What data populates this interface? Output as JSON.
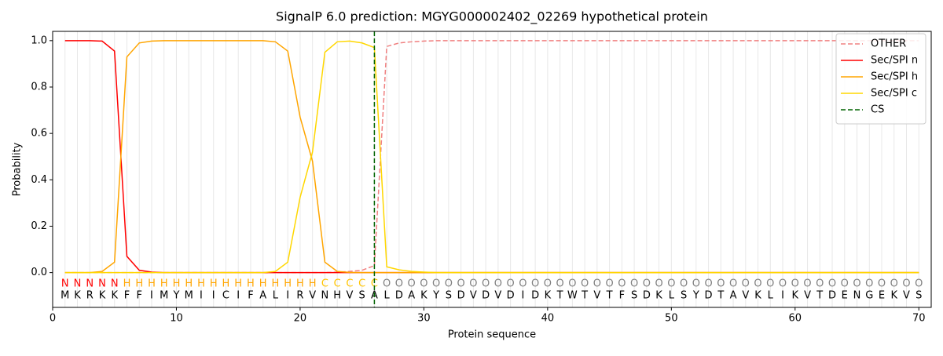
{
  "chart_data": {
    "type": "line",
    "title": "SignalP 6.0 prediction: MGYG000002402_02269 hypothetical protein",
    "x_label": "Protein sequence",
    "y_label": "Probability",
    "x": [
      1,
      2,
      3,
      4,
      5,
      6,
      7,
      8,
      9,
      10,
      11,
      12,
      13,
      14,
      15,
      16,
      17,
      18,
      19,
      20,
      21,
      22,
      23,
      24,
      25,
      26,
      27,
      28,
      29,
      30,
      31,
      32,
      33,
      34,
      35,
      36,
      37,
      38,
      39,
      40,
      41,
      42,
      43,
      44,
      45,
      46,
      47,
      48,
      49,
      50,
      51,
      52,
      53,
      54,
      55,
      56,
      57,
      58,
      59,
      60,
      61,
      62,
      63,
      64,
      65,
      66,
      67,
      68,
      69,
      70
    ],
    "series": [
      {
        "name": "OTHER",
        "color": "#f08080",
        "dash": true,
        "values": [
          0,
          0,
          0,
          0,
          0,
          0,
          0,
          0,
          0,
          0,
          0,
          0,
          0,
          0,
          0,
          0,
          0,
          0,
          0,
          0,
          0,
          0,
          0.002,
          0.005,
          0.01,
          0.03,
          0.975,
          0.99,
          0.995,
          0.998,
          1,
          1,
          1,
          1,
          1,
          1,
          1,
          1,
          1,
          1,
          1,
          1,
          1,
          1,
          1,
          1,
          1,
          1,
          1,
          1,
          1,
          1,
          1,
          1,
          1,
          1,
          1,
          1,
          1,
          1,
          1,
          1,
          1,
          1,
          1,
          1,
          1,
          1,
          1,
          1
        ]
      },
      {
        "name": "Sec/SPI n",
        "color": "#ff0000",
        "dash": false,
        "values": [
          1,
          1,
          1,
          0.998,
          0.955,
          0.07,
          0.01,
          0.002,
          0,
          0,
          0,
          0,
          0,
          0,
          0,
          0,
          0,
          0,
          0,
          0,
          0,
          0,
          0,
          0,
          0,
          0,
          0,
          0,
          0,
          0,
          0,
          0,
          0,
          0,
          0,
          0,
          0,
          0,
          0,
          0,
          0,
          0,
          0,
          0,
          0,
          0,
          0,
          0,
          0,
          0,
          0,
          0,
          0,
          0,
          0,
          0,
          0,
          0,
          0,
          0,
          0,
          0,
          0,
          0,
          0,
          0,
          0,
          0,
          0,
          0
        ]
      },
      {
        "name": "Sec/SPI h",
        "color": "#ffa500",
        "dash": false,
        "values": [
          0,
          0,
          0,
          0.005,
          0.045,
          0.93,
          0.99,
          0.998,
          1,
          1,
          1,
          1,
          1,
          1,
          1,
          1,
          1,
          0.995,
          0.955,
          0.67,
          0.48,
          0.045,
          0.005,
          0.001,
          0,
          0,
          0,
          0,
          0,
          0,
          0,
          0,
          0,
          0,
          0,
          0,
          0,
          0,
          0,
          0,
          0,
          0,
          0,
          0,
          0,
          0,
          0,
          0,
          0,
          0,
          0,
          0,
          0,
          0,
          0,
          0,
          0,
          0,
          0,
          0,
          0,
          0,
          0,
          0,
          0,
          0,
          0,
          0,
          0,
          0
        ]
      },
      {
        "name": "Sec/SPI c",
        "color": "#ffd700",
        "dash": false,
        "values": [
          0,
          0,
          0,
          0,
          0,
          0,
          0,
          0,
          0,
          0,
          0,
          0,
          0,
          0,
          0,
          0,
          0,
          0.005,
          0.045,
          0.325,
          0.52,
          0.95,
          0.995,
          0.998,
          0.99,
          0.97,
          0.025,
          0.012,
          0.005,
          0.002,
          0,
          0,
          0,
          0,
          0,
          0,
          0,
          0,
          0,
          0,
          0,
          0,
          0,
          0,
          0,
          0,
          0,
          0,
          0,
          0,
          0,
          0,
          0,
          0,
          0,
          0,
          0,
          0,
          0,
          0,
          0,
          0,
          0,
          0,
          0,
          0,
          0,
          0,
          0,
          0
        ]
      }
    ],
    "vlines": [
      {
        "name": "CS",
        "x": 26,
        "color": "#006400"
      }
    ],
    "regions": [
      "N",
      "N",
      "N",
      "N",
      "N",
      "H",
      "H",
      "H",
      "H",
      "H",
      "H",
      "H",
      "H",
      "H",
      "H",
      "H",
      "H",
      "H",
      "H",
      "H",
      "H",
      "C",
      "C",
      "C",
      "C",
      "C",
      "O",
      "O",
      "O",
      "O",
      "O",
      "O",
      "O",
      "O",
      "O",
      "O",
      "O",
      "O",
      "O",
      "O",
      "O",
      "O",
      "O",
      "O",
      "O",
      "O",
      "O",
      "O",
      "O",
      "O",
      "O",
      "O",
      "O",
      "O",
      "O",
      "O",
      "O",
      "O",
      "O",
      "O",
      "O",
      "O",
      "O",
      "O",
      "O",
      "O",
      "O",
      "O",
      "O",
      "O"
    ],
    "region_colors": {
      "N": "#ff0000",
      "H": "#ffa500",
      "C": "#ffc400",
      "O": "#808080"
    },
    "residues": [
      "M",
      "K",
      "R",
      "K",
      "K",
      "F",
      "F",
      "I",
      "M",
      "Y",
      "M",
      "I",
      "I",
      "C",
      "I",
      "F",
      "A",
      "L",
      "I",
      "R",
      "V",
      "N",
      "H",
      "V",
      "S",
      "A",
      "L",
      "D",
      "A",
      "K",
      "Y",
      "S",
      "D",
      "V",
      "D",
      "V",
      "D",
      "I",
      "D",
      "K",
      "T",
      "W",
      "T",
      "V",
      "T",
      "F",
      "S",
      "D",
      "K",
      "L",
      "S",
      "Y",
      "D",
      "T",
      "A",
      "V",
      "K",
      "L",
      "I",
      "K",
      "V",
      "T",
      "D",
      "E",
      "N",
      "G",
      "E",
      "K",
      "V",
      "S"
    ],
    "xlim": [
      0,
      71
    ],
    "ylim": [
      -0.15,
      1.04
    ],
    "xticks": [
      0,
      10,
      20,
      30,
      40,
      50,
      60,
      70
    ],
    "yticks": [
      {
        "value": 0,
        "label": "0.0"
      },
      0.2,
      0.4,
      0.6,
      0.8,
      {
        "value": 1,
        "label": "1.0"
      }
    ],
    "vgrid": true,
    "legend": "upper right"
  }
}
